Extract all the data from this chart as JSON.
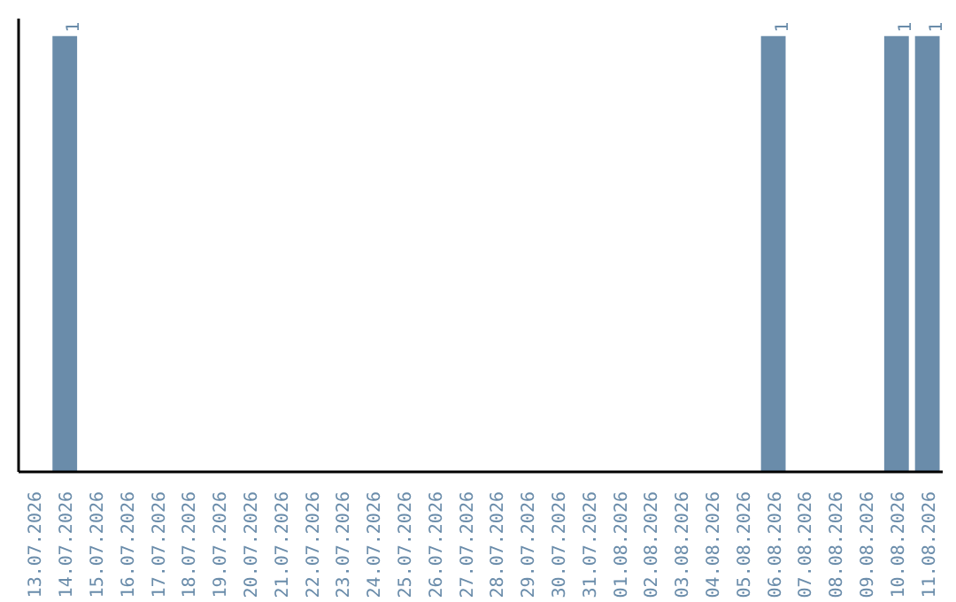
{
  "chart_data": {
    "type": "bar",
    "categories": [
      "13.07.2026",
      "14.07.2026",
      "15.07.2026",
      "16.07.2026",
      "17.07.2026",
      "18.07.2026",
      "19.07.2026",
      "20.07.2026",
      "21.07.2026",
      "22.07.2026",
      "23.07.2026",
      "24.07.2026",
      "25.07.2026",
      "26.07.2026",
      "27.07.2026",
      "28.07.2026",
      "29.07.2026",
      "30.07.2026",
      "31.07.2026",
      "01.08.2026",
      "02.08.2026",
      "03.08.2026",
      "04.08.2026",
      "05.08.2026",
      "06.08.2026",
      "07.08.2026",
      "08.08.2026",
      "09.08.2026",
      "10.08.2026",
      "11.08.2026"
    ],
    "values": [
      0,
      1,
      0,
      0,
      0,
      0,
      0,
      0,
      0,
      0,
      0,
      0,
      0,
      0,
      0,
      0,
      0,
      0,
      0,
      0,
      0,
      0,
      0,
      0,
      1,
      0,
      0,
      0,
      1,
      1
    ],
    "value_labels": [
      null,
      "1",
      null,
      null,
      null,
      null,
      null,
      null,
      null,
      null,
      null,
      null,
      null,
      null,
      null,
      null,
      null,
      null,
      null,
      null,
      null,
      null,
      null,
      null,
      "1",
      null,
      null,
      null,
      "1",
      "1"
    ],
    "color": "#6a8caa",
    "grid": false,
    "tick_labels": "x"
  }
}
